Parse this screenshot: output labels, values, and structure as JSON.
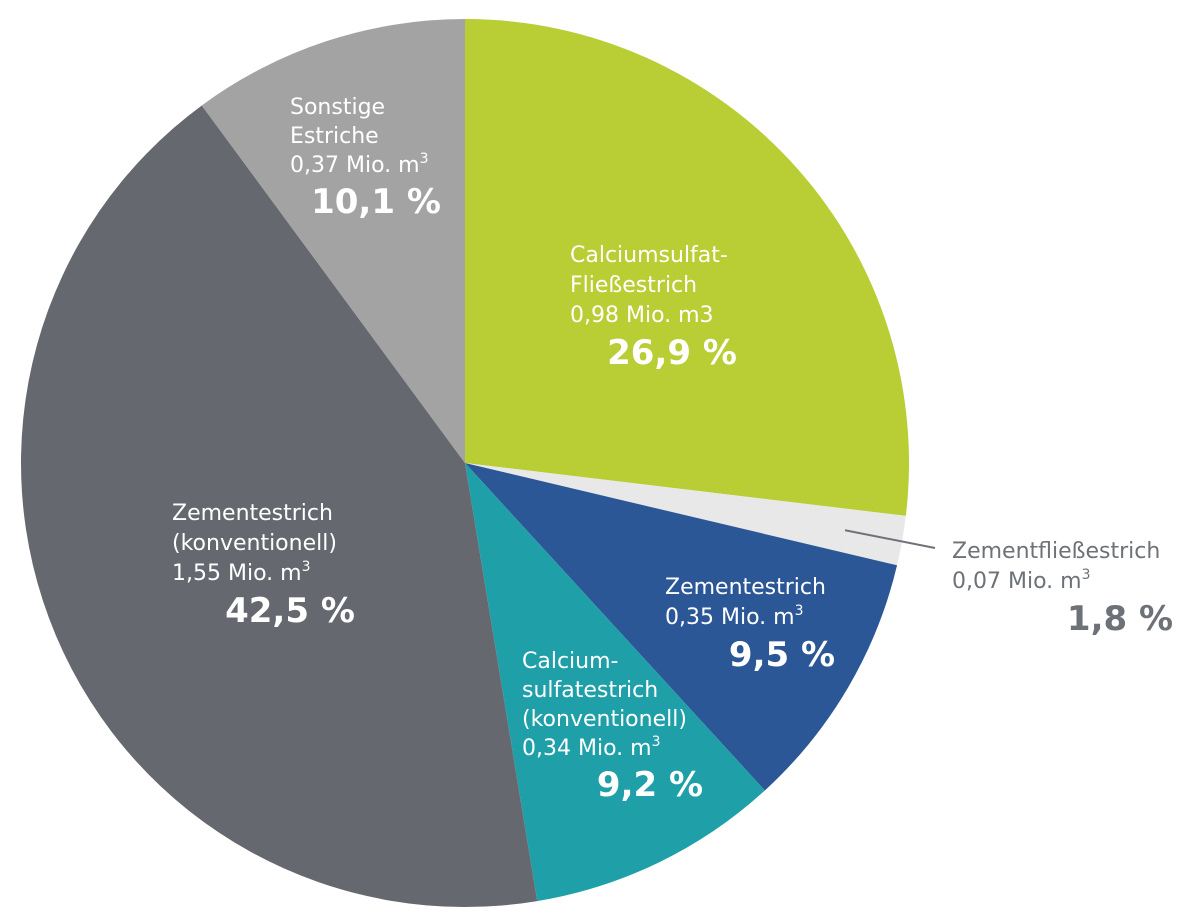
{
  "chart_data": {
    "type": "pie",
    "title": "",
    "start_angle_deg": 0,
    "direction": "clockwise",
    "slices": [
      {
        "name_lines": [
          "Calciumsulfat-",
          "Fließestrich"
        ],
        "amount": "0,98 Mio. m3",
        "amount_sup": "",
        "value": 26.9,
        "percent_label": "26,9 %",
        "color": "#b9cd34",
        "text_color": "#ffffff"
      },
      {
        "name_lines": [
          "Zementfließestrich"
        ],
        "amount": "0,07 Mio. m",
        "amount_sup": "3",
        "value": 1.8,
        "percent_label": "1,8 %",
        "color": "#e8e8e8",
        "text_color": "#6d7278",
        "outside": true
      },
      {
        "name_lines": [
          "Zementestrich"
        ],
        "amount": "0,35 Mio. m",
        "amount_sup": "3",
        "value": 9.5,
        "percent_label": "9,5 %",
        "color": "#2c5797",
        "text_color": "#ffffff"
      },
      {
        "name_lines": [
          "Calcium-",
          "sulfatestrich",
          "(konventionell)"
        ],
        "amount": "0,34 Mio. m",
        "amount_sup": "3",
        "value": 9.2,
        "percent_label": "9,2 %",
        "color": "#1fa0a8",
        "text_color": "#ffffff"
      },
      {
        "name_lines": [
          "Zementestrich",
          "(konventionell)"
        ],
        "amount": "1,55 Mio. m",
        "amount_sup": "3",
        "value": 42.5,
        "percent_label": "42,5 %",
        "color": "#65696f",
        "text_color": "#ffffff"
      },
      {
        "name_lines": [
          "Sonstige",
          "Estriche"
        ],
        "amount": "0,37 Mio. m",
        "amount_sup": "3",
        "value": 10.1,
        "percent_label": "10,1 %",
        "color": "#a3a3a3",
        "text_color": "#ffffff"
      }
    ]
  }
}
